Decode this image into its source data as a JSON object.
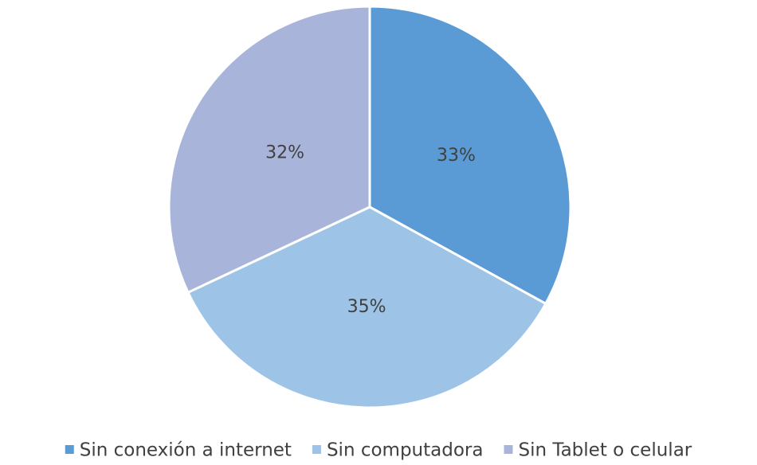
{
  "chart_data": {
    "type": "pie",
    "categories": [
      "Sin conexión a internet",
      "Sin computadora",
      "Sin Tablet o celular"
    ],
    "values": [
      33,
      35,
      32
    ],
    "value_labels": [
      "33%",
      "35%",
      "32%"
    ],
    "colors": [
      "#5b9bd5",
      "#9dc3e6",
      "#a9b4db"
    ],
    "legend": "bottom"
  }
}
